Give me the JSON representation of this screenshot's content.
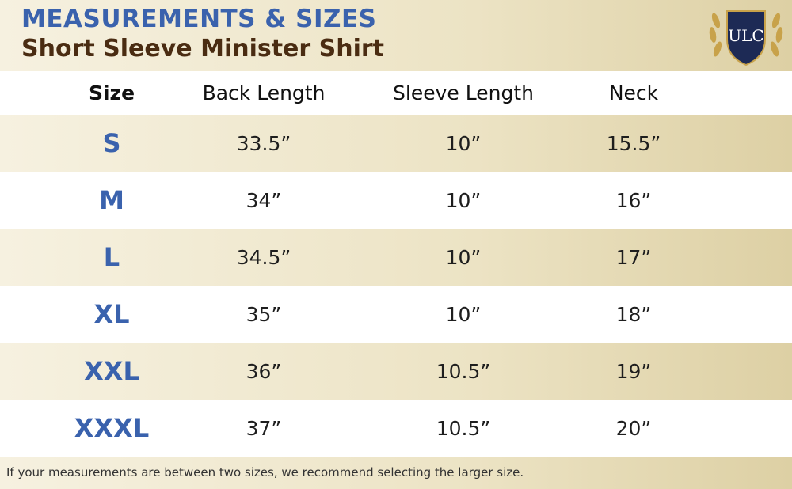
{
  "header": {
    "title": "MEASUREMENTS & SIZES",
    "subtitle": "Short Sleeve Minister Shirt",
    "logo": "ULC"
  },
  "table": {
    "columns": [
      "Size",
      "Back Length",
      "Sleeve Length",
      "Neck"
    ],
    "rows": [
      [
        "S",
        "33.5”",
        "10”",
        "15.5”"
      ],
      [
        "M",
        "34”",
        "10”",
        "16”"
      ],
      [
        "L",
        "34.5”",
        "10”",
        "17”"
      ],
      [
        "XL",
        "35”",
        "10”",
        "18”"
      ],
      [
        "XXL",
        "36”",
        "10.5”",
        "19”"
      ],
      [
        "XXXL",
        "37”",
        "10.5”",
        "20”"
      ]
    ]
  },
  "footnote": "If your measurements are between two sizes, we recommend selecting the larger size."
}
